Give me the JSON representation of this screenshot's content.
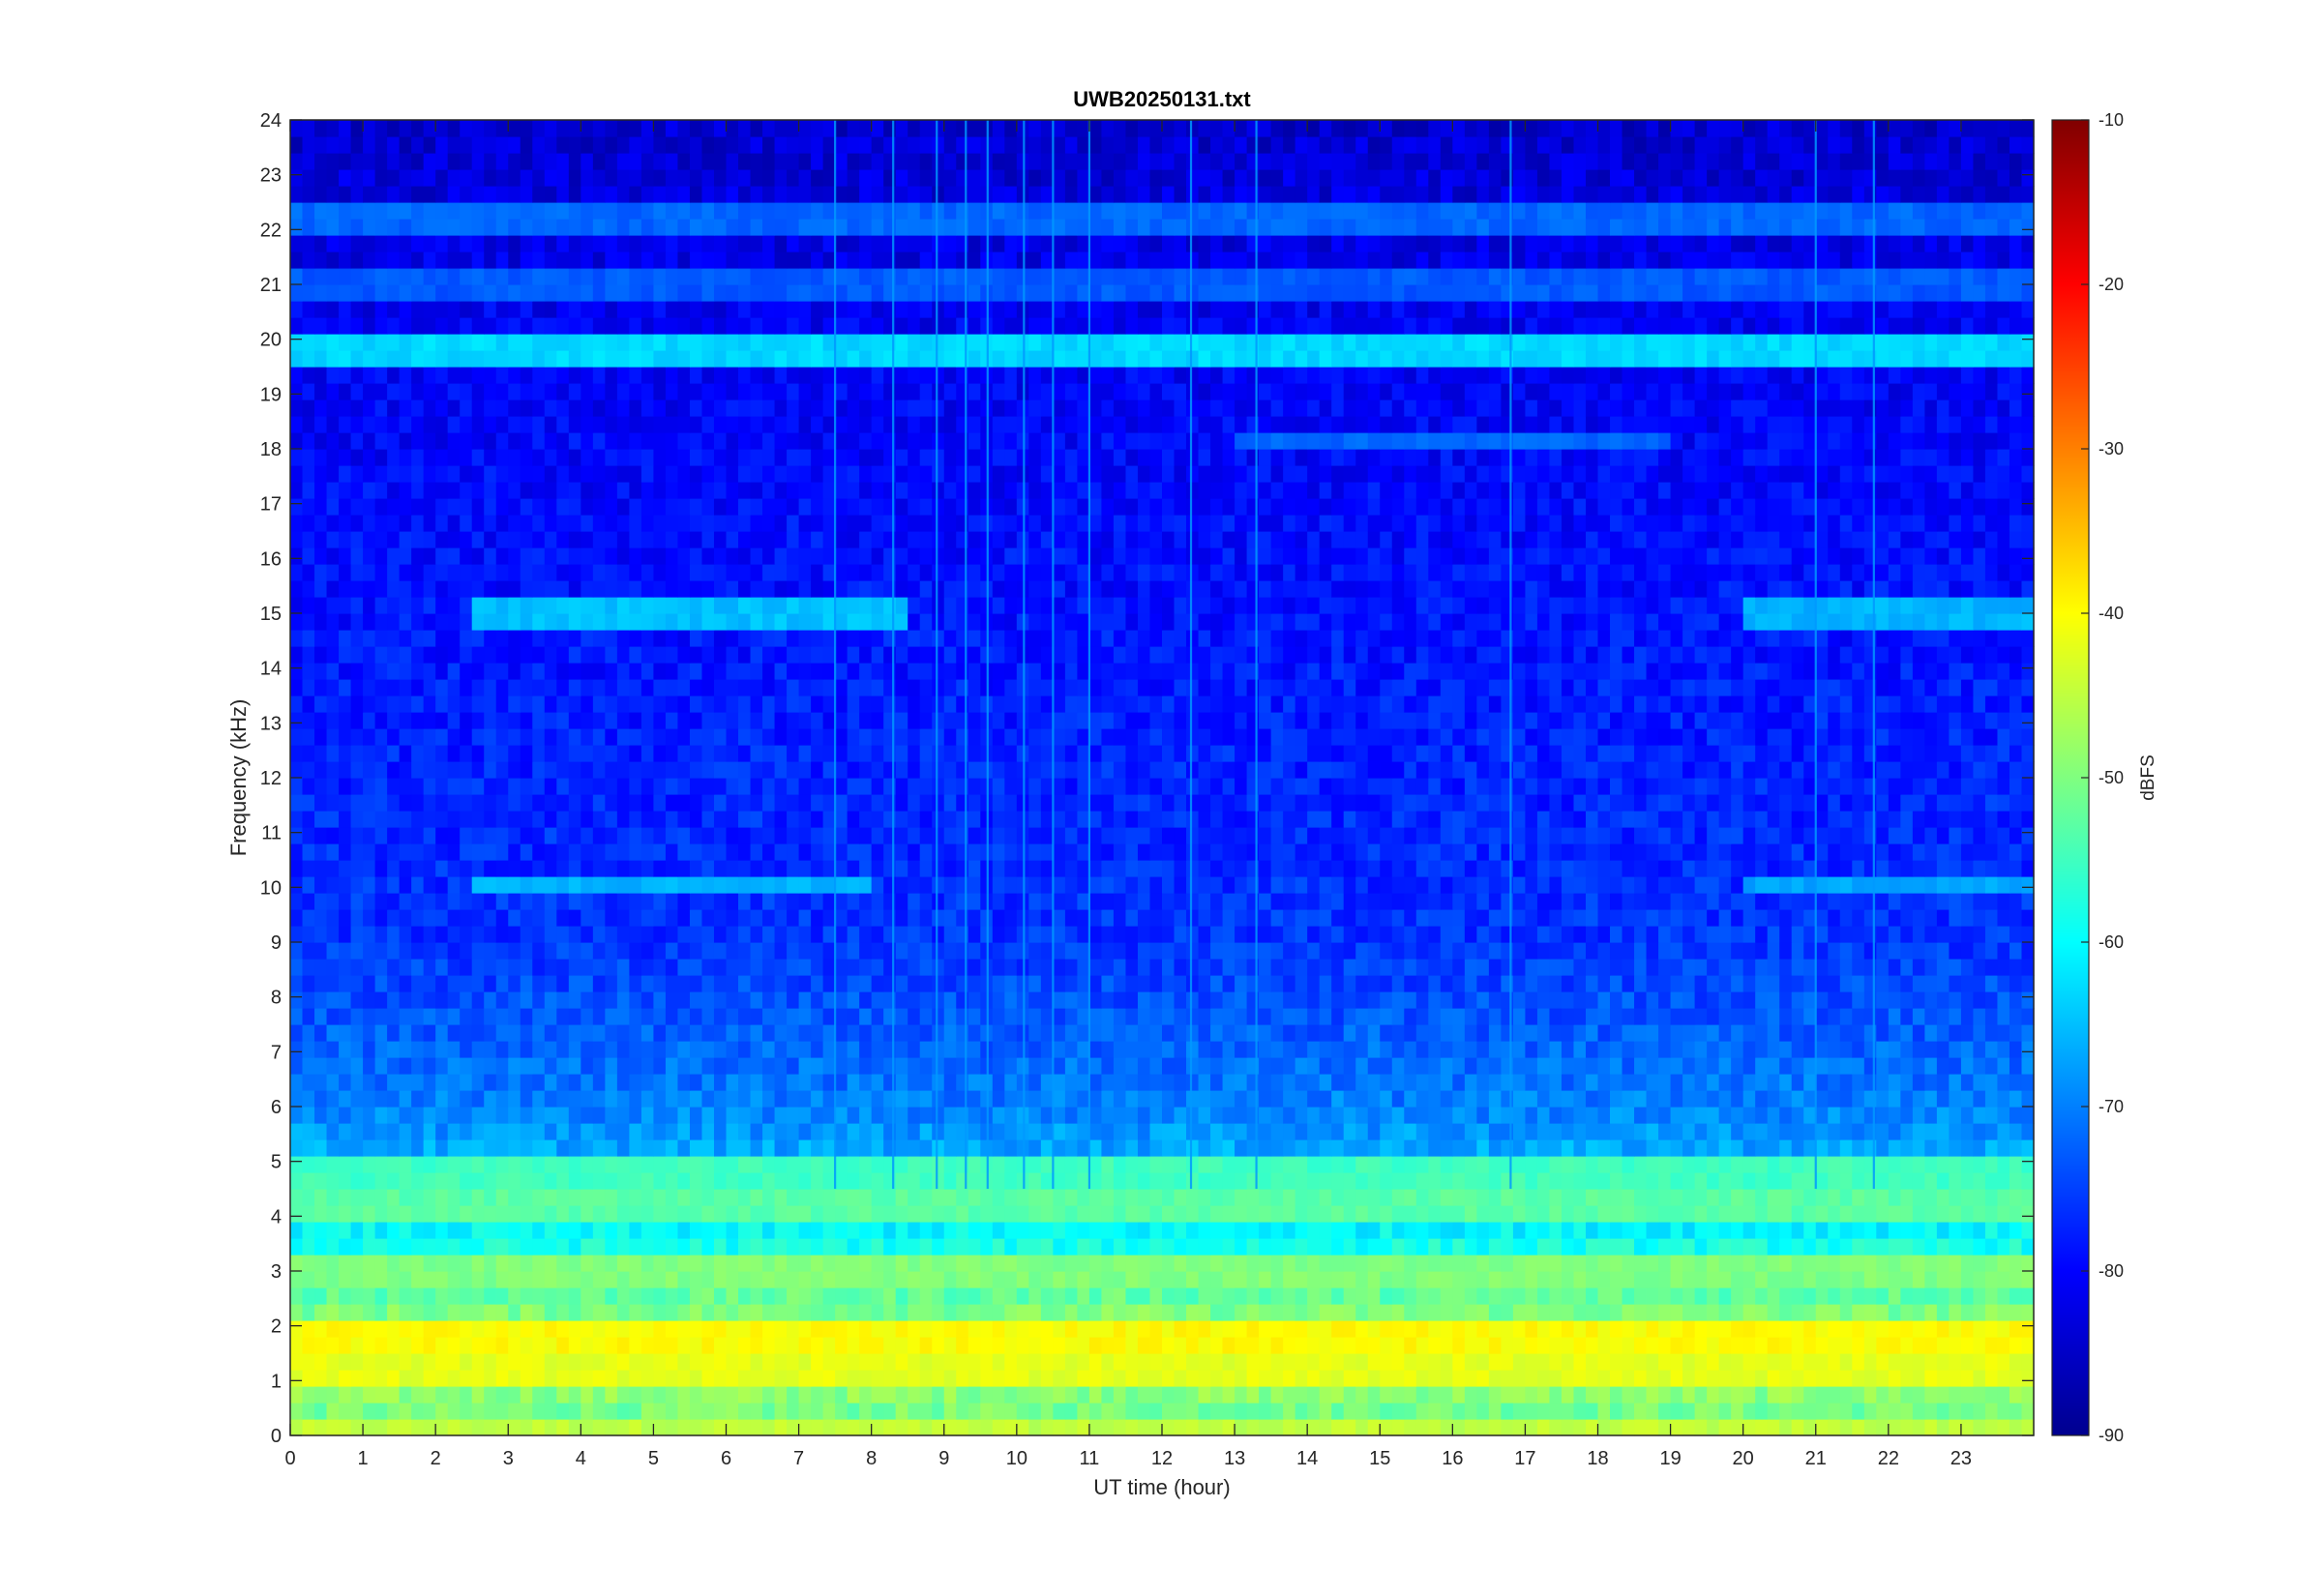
{
  "chart_data": {
    "type": "heatmap",
    "title": "UWB20250131.txt",
    "xlabel": "UT time (hour)",
    "ylabel": "Frequency (kHz)",
    "colorbar_label": "dBFS",
    "colormap": "jet",
    "xlim": [
      0,
      24
    ],
    "ylim": [
      0,
      24
    ],
    "clim": [
      -90,
      -10
    ],
    "x_ticks": [
      "0",
      "1",
      "2",
      "3",
      "4",
      "5",
      "6",
      "7",
      "8",
      "9",
      "10",
      "11",
      "12",
      "13",
      "14",
      "15",
      "16",
      "17",
      "18",
      "19",
      "20",
      "21",
      "22",
      "23"
    ],
    "y_ticks": [
      "0",
      "1",
      "2",
      "3",
      "4",
      "5",
      "6",
      "7",
      "8",
      "9",
      "10",
      "11",
      "12",
      "13",
      "14",
      "15",
      "16",
      "17",
      "18",
      "19",
      "20",
      "21",
      "22",
      "23",
      "24"
    ],
    "colorbar_ticks": [
      "-10",
      "-20",
      "-30",
      "-40",
      "-50",
      "-60",
      "-70",
      "-80",
      "-90"
    ],
    "background_levels_dBFS": [
      {
        "f_khz": 0.2,
        "level": -52
      },
      {
        "f_khz": 1.5,
        "level": -45
      },
      {
        "f_khz": 2.5,
        "level": -52
      },
      {
        "f_khz": 4.0,
        "level": -62
      },
      {
        "f_khz": 6.0,
        "level": -70
      },
      {
        "f_khz": 9.0,
        "level": -76
      },
      {
        "f_khz": 16.0,
        "level": -79
      },
      {
        "f_khz": 20.5,
        "level": -81
      },
      {
        "f_khz": 24.0,
        "level": -84
      }
    ],
    "persistent_lines": [
      {
        "f_khz": 19.8,
        "level": -63,
        "t_start": 0,
        "t_end": 24
      },
      {
        "f_khz": 22.2,
        "level": -72,
        "t_start": 0,
        "t_end": 24
      },
      {
        "f_khz": 21.0,
        "level": -73,
        "t_start": 0,
        "t_end": 24
      },
      {
        "f_khz": 18.2,
        "level": -72,
        "t_start": 13,
        "t_end": 19
      },
      {
        "f_khz": 15.0,
        "level": -65,
        "t_start": 2.5,
        "t_end": 8.5
      },
      {
        "f_khz": 10.0,
        "level": -66,
        "t_start": 2.5,
        "t_end": 8.0
      },
      {
        "f_khz": 15.0,
        "level": -66,
        "t_start": 20,
        "t_end": 24
      },
      {
        "f_khz": 10.0,
        "level": -67,
        "t_start": 20,
        "t_end": 24
      },
      {
        "f_khz": 4.8,
        "level": -55,
        "t_start": 0,
        "t_end": 24
      },
      {
        "f_khz": 4.2,
        "level": -53,
        "t_start": 0,
        "t_end": 24
      },
      {
        "f_khz": 3.0,
        "level": -50,
        "t_start": 0,
        "t_end": 24
      },
      {
        "f_khz": 1.8,
        "level": -40,
        "t_start": 0,
        "t_end": 24
      },
      {
        "f_khz": 1.2,
        "level": -42,
        "t_start": 0,
        "t_end": 24
      },
      {
        "f_khz": 0.05,
        "level": -45,
        "t_start": 0,
        "t_end": 24
      }
    ],
    "broadband_events_hours": [
      7.5,
      8.3,
      8.9,
      9.3,
      9.6,
      10.1,
      10.5,
      11.0,
      12.4,
      13.3,
      16.8,
      21.0,
      21.8
    ]
  }
}
